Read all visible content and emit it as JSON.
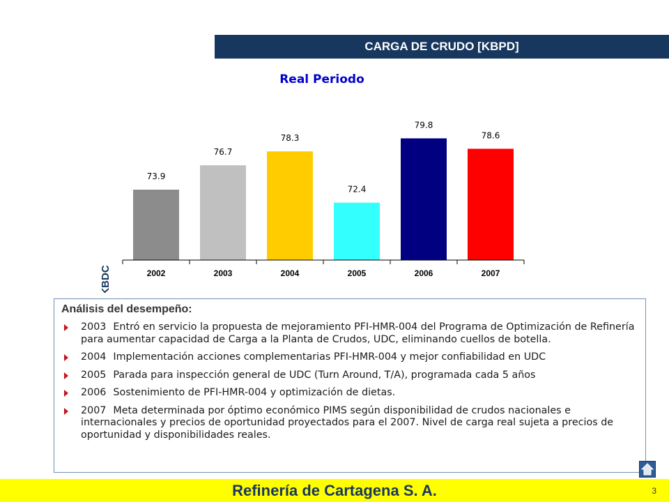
{
  "header": {
    "title": "CARGA DE CRUDO [KBPD]"
  },
  "chart_data": {
    "type": "bar",
    "title": "Real Periodo",
    "ylabel": "KBDC",
    "xlabel": "",
    "categories": [
      "2002",
      "2003",
      "2004",
      "2005",
      "2006",
      "2007"
    ],
    "values": [
      73.9,
      76.7,
      78.3,
      72.4,
      79.8,
      78.6
    ],
    "value_labels": [
      "73.9",
      "76.7",
      "78.3",
      "72.4",
      "79.8",
      "78.6"
    ],
    "colors": [
      "#8c8c8c",
      "#c0c0c0",
      "#ffcc00",
      "#33ffff",
      "#000080",
      "#ff0000"
    ],
    "ylim": [
      65.8,
      82
    ],
    "grid": false,
    "legend": "none"
  },
  "analysis": {
    "title": "Análisis del desempeño:",
    "items": [
      {
        "year": "2003",
        "text": "Entró en servicio la propuesta de mejoramiento PFI-HMR-004 del Programa de Optimización de Refinería para aumentar capacidad de Carga a la Planta de Crudos, UDC, eliminando cuellos de botella."
      },
      {
        "year": "2004",
        "text": "Implementación acciones complementarias PFI-HMR-004 y mejor confiabilidad en UDC"
      },
      {
        "year": "2005",
        "text": "Parada para inspección general de UDC (Turn Around, T/A), programada cada 5 años"
      },
      {
        "year": "2006",
        "text": "Sostenimiento de PFI-HMR-004 y optimización de dietas."
      },
      {
        "year": "2007",
        "text": "Meta determinada por óptimo económico PIMS según disponibilidad de crudos nacionales e internacionales y precios de oportunidad proyectados para el 2007. Nivel de carga real sujeta a precios de oportunidad y disponibilidades reales."
      }
    ]
  },
  "footer": {
    "title": "Refinería de Cartagena S. A.",
    "page_number": "3"
  },
  "icons": {
    "home": "home-icon"
  },
  "theme": {
    "navy": "#17375e",
    "yellow": "#ffff00",
    "bullet_red": "#c0161c"
  }
}
